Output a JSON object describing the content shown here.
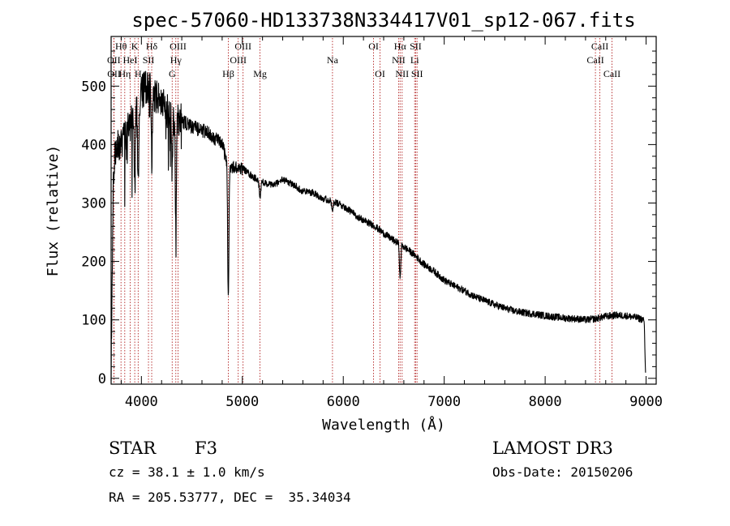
{
  "chart_data": {
    "type": "line",
    "title": "spec-57060-HD133738N334417V01_sp12-067.fits",
    "xlabel": "Wavelength (Å)",
    "ylabel": "Flux (relative)",
    "xlim": [
      3700,
      9100
    ],
    "ylim": [
      -10,
      585
    ],
    "xticks": [
      4000,
      5000,
      6000,
      7000,
      8000,
      9000
    ],
    "yticks": [
      0,
      100,
      200,
      300,
      400,
      500
    ],
    "grid": false,
    "line_color": "#000000",
    "marker_color": "#b22222",
    "spectrum_profile": [
      [
        3700,
        20
      ],
      [
        3720,
        330
      ],
      [
        3740,
        380
      ],
      [
        3760,
        395
      ],
      [
        3800,
        405
      ],
      [
        3850,
        420
      ],
      [
        3900,
        440
      ],
      [
        3950,
        465
      ],
      [
        4000,
        490
      ],
      [
        4050,
        500
      ],
      [
        4100,
        495
      ],
      [
        4150,
        480
      ],
      [
        4200,
        470
      ],
      [
        4300,
        450
      ],
      [
        4400,
        440
      ],
      [
        4500,
        430
      ],
      [
        4600,
        425
      ],
      [
        4700,
        415
      ],
      [
        4800,
        400
      ],
      [
        4850,
        370
      ],
      [
        4900,
        360
      ],
      [
        5000,
        360
      ],
      [
        5100,
        345
      ],
      [
        5200,
        335
      ],
      [
        5300,
        330
      ],
      [
        5400,
        340
      ],
      [
        5500,
        332
      ],
      [
        5600,
        320
      ],
      [
        5700,
        318
      ],
      [
        5800,
        308
      ],
      [
        5900,
        302
      ],
      [
        6000,
        295
      ],
      [
        6100,
        282
      ],
      [
        6200,
        270
      ],
      [
        6300,
        262
      ],
      [
        6400,
        248
      ],
      [
        6500,
        236
      ],
      [
        6600,
        225
      ],
      [
        6700,
        212
      ],
      [
        6800,
        195
      ],
      [
        6900,
        183
      ],
      [
        7000,
        168
      ],
      [
        7100,
        158
      ],
      [
        7200,
        150
      ],
      [
        7300,
        140
      ],
      [
        7400,
        133
      ],
      [
        7500,
        126
      ],
      [
        7600,
        120
      ],
      [
        7700,
        115
      ],
      [
        7800,
        112
      ],
      [
        7900,
        110
      ],
      [
        8000,
        107
      ],
      [
        8100,
        105
      ],
      [
        8200,
        103
      ],
      [
        8300,
        102
      ],
      [
        8400,
        100
      ],
      [
        8500,
        102
      ],
      [
        8600,
        106
      ],
      [
        8700,
        108
      ],
      [
        8800,
        107
      ],
      [
        8900,
        104
      ],
      [
        8980,
        100
      ],
      [
        8995,
        10
      ]
    ],
    "absorption_features": [
      {
        "center": 3934,
        "depth": 140,
        "width": 6
      },
      {
        "center": 3968,
        "depth": 150,
        "width": 6
      },
      {
        "center": 4102,
        "depth": 120,
        "width": 6
      },
      {
        "center": 4305,
        "depth": 110,
        "width": 6
      },
      {
        "center": 4341,
        "depth": 150,
        "width": 6
      },
      {
        "center": 4861,
        "depth": 230,
        "width": 6
      },
      {
        "center": 5175,
        "depth": 25,
        "width": 8
      },
      {
        "center": 5892,
        "depth": 20,
        "width": 6
      },
      {
        "center": 6563,
        "depth": 60,
        "width": 6
      }
    ],
    "spectral_lines": [
      {
        "label": "Hθ",
        "wavelength": 3798,
        "tier": 0
      },
      {
        "label": "OII",
        "wavelength": 3727,
        "tier": 1
      },
      {
        "label": "OII",
        "wavelength": 3729,
        "tier": 2
      },
      {
        "label": "Hη",
        "wavelength": 3835,
        "tier": 2
      },
      {
        "label": "HeI",
        "wavelength": 3889,
        "tier": 1
      },
      {
        "label": "K",
        "wavelength": 3934,
        "tier": 0
      },
      {
        "label": "H",
        "wavelength": 3968,
        "tier": 2
      },
      {
        "label": "SII",
        "wavelength": 4070,
        "tier": 1
      },
      {
        "label": "Hδ",
        "wavelength": 4102,
        "tier": 0
      },
      {
        "label": "G",
        "wavelength": 4305,
        "tier": 2
      },
      {
        "label": "Hγ",
        "wavelength": 4341,
        "tier": 1
      },
      {
        "label": "OIII",
        "wavelength": 4363,
        "tier": 0
      },
      {
        "label": "Hβ",
        "wavelength": 4861,
        "tier": 2
      },
      {
        "label": "OIII",
        "wavelength": 4959,
        "tier": 1
      },
      {
        "label": "OIII",
        "wavelength": 5007,
        "tier": 0
      },
      {
        "label": "Mg",
        "wavelength": 5175,
        "tier": 2
      },
      {
        "label": "Na",
        "wavelength": 5893,
        "tier": 1
      },
      {
        "label": "OI",
        "wavelength": 6300,
        "tier": 0
      },
      {
        "label": "OI",
        "wavelength": 6364,
        "tier": 2
      },
      {
        "label": "NII",
        "wavelength": 6548,
        "tier": 1
      },
      {
        "label": "Hα",
        "wavelength": 6563,
        "tier": 0
      },
      {
        "label": "NII",
        "wavelength": 6583,
        "tier": 2
      },
      {
        "label": "Li",
        "wavelength": 6707,
        "tier": 1
      },
      {
        "label": "SII",
        "wavelength": 6717,
        "tier": 0
      },
      {
        "label": "SII",
        "wavelength": 6731,
        "tier": 2
      },
      {
        "label": "CaII",
        "wavelength": 8498,
        "tier": 1
      },
      {
        "label": "CaII",
        "wavelength": 8542,
        "tier": 0
      },
      {
        "label": "CaII",
        "wavelength": 8662,
        "tier": 2
      }
    ]
  },
  "info": {
    "class_label": "STAR",
    "subclass": "F3",
    "survey": "LAMOST DR3",
    "redshift": "cz = 38.1 ± 1.0 km/s",
    "obs_date": "Obs-Date: 20150206",
    "coords": "RA = 205.53777, DEC =  35.34034"
  }
}
